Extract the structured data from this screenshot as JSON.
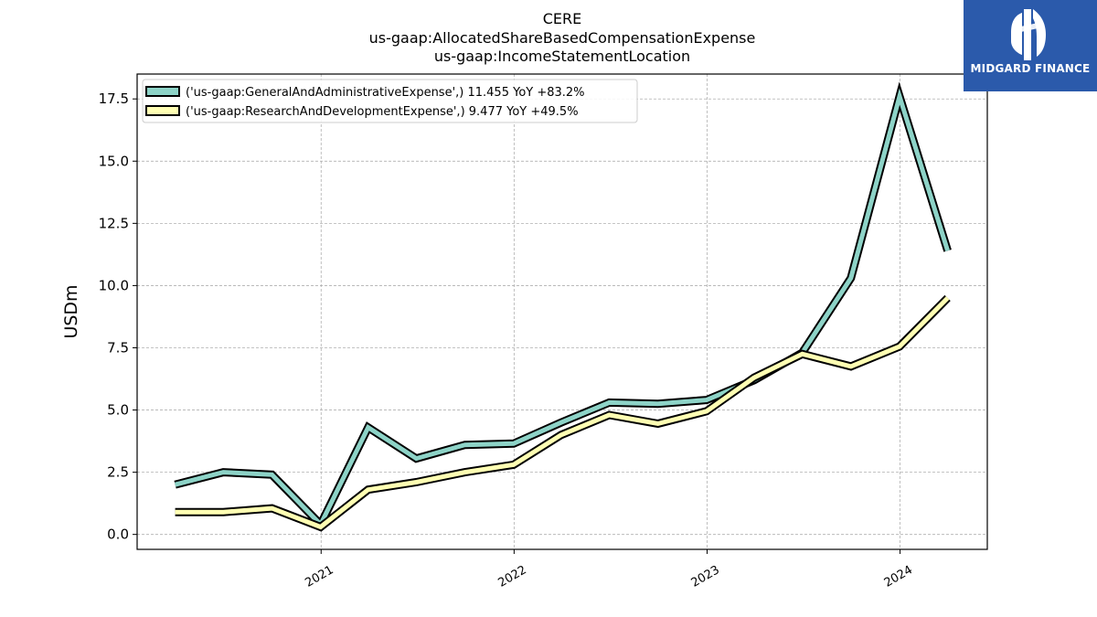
{
  "header": {
    "title_line1": "CERE",
    "title_line2": "us-gaap:AllocatedShareBasedCompensationExpense",
    "title_line3": "us-gaap:IncomeStatementLocation"
  },
  "logo": {
    "text": "MIDGARD FINANCE",
    "bg_color": "#2b5aab"
  },
  "chart_data": {
    "type": "line",
    "ylabel": "USDm",
    "xlabel": "",
    "ylim": [
      -0.6,
      18.5
    ],
    "xlim": [
      "2020-01-19",
      "2024-06-14"
    ],
    "yticks": [
      0.0,
      2.5,
      5.0,
      7.5,
      10.0,
      12.5,
      15.0,
      17.5
    ],
    "ytick_labels": [
      "0.0",
      "2.5",
      "5.0",
      "7.5",
      "10.0",
      "12.5",
      "15.0",
      "17.5"
    ],
    "xticks": [
      "2021-01-01",
      "2022-01-01",
      "2023-01-01",
      "2024-01-01"
    ],
    "xtick_labels": [
      "2021",
      "2022",
      "2023",
      "2024"
    ],
    "grid": true,
    "legend_position": "top-left",
    "series": [
      {
        "name": "('us-gaap:GeneralAndAdministrativeExpense',) 11.455 YoY +83.2%",
        "color": "#8dd3c7",
        "x": [
          "2020-03-31",
          "2020-06-30",
          "2020-09-30",
          "2020-12-31",
          "2021-03-31",
          "2021-06-30",
          "2021-09-30",
          "2021-12-31",
          "2022-03-31",
          "2022-06-30",
          "2022-09-30",
          "2022-12-31",
          "2023-03-31",
          "2023-06-30",
          "2023-09-30",
          "2023-12-31",
          "2024-03-31"
        ],
        "values": [
          2.0,
          2.5,
          2.4,
          0.4,
          4.3,
          3.05,
          3.6,
          3.65,
          4.5,
          5.3,
          5.25,
          5.4,
          6.2,
          7.3,
          10.3,
          17.6,
          11.4
        ]
      },
      {
        "name": "('us-gaap:ResearchAndDevelopmentExpense',) 9.477 YoY +49.5%",
        "color": "#ffffb3",
        "x": [
          "2020-03-31",
          "2020-06-30",
          "2020-09-30",
          "2020-12-31",
          "2021-03-31",
          "2021-06-30",
          "2021-09-30",
          "2021-12-31",
          "2022-03-31",
          "2022-06-30",
          "2022-09-30",
          "2022-12-31",
          "2023-03-31",
          "2023-06-30",
          "2023-09-30",
          "2023-12-31",
          "2024-03-31"
        ],
        "values": [
          0.9,
          0.9,
          1.05,
          0.3,
          1.8,
          2.1,
          2.5,
          2.8,
          4.0,
          4.8,
          4.45,
          4.95,
          6.3,
          7.25,
          6.75,
          7.55,
          9.5
        ]
      }
    ]
  }
}
